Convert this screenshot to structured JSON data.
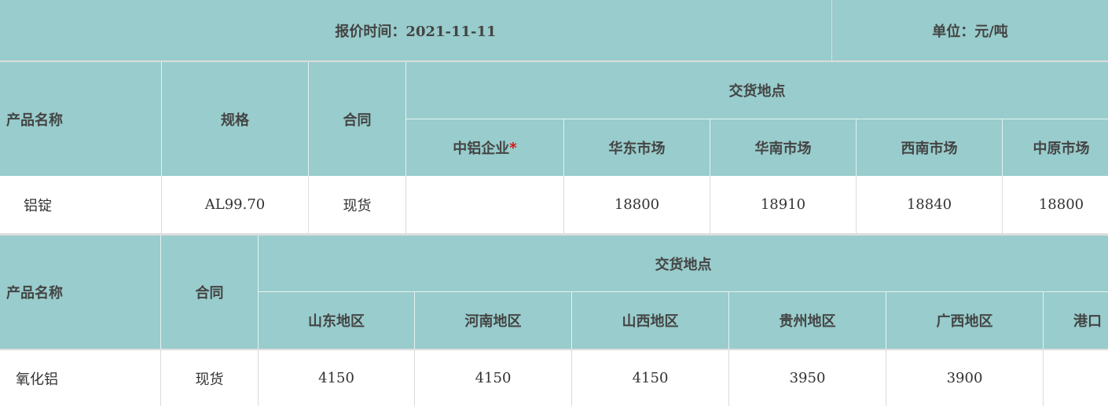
{
  "header": {
    "quote_time": "报价时间：2021-11-11",
    "unit": "单位：元/吨"
  },
  "colors": {
    "header_bg": "#99cccc",
    "required_star": "#e00000"
  },
  "table1": {
    "headers": {
      "product": "产品名称",
      "spec": "规格",
      "contract": "合同",
      "delivery": "交货地点"
    },
    "locations": [
      {
        "label": "中铝企业",
        "star": "*"
      },
      {
        "label": "华东市场"
      },
      {
        "label": "华南市场"
      },
      {
        "label": "西南市场"
      },
      {
        "label": "中原市场"
      }
    ],
    "row": {
      "product": "铝锭",
      "spec": "AL99.70",
      "contract": "现货",
      "values": [
        "",
        "18800",
        "18910",
        "18840",
        "18800"
      ]
    }
  },
  "table2": {
    "headers": {
      "product": "产品名称",
      "contract": "合同",
      "delivery": "交货地点"
    },
    "locations": [
      "山东地区",
      "河南地区",
      "山西地区",
      "贵州地区",
      "广西地区",
      "港口"
    ],
    "row": {
      "product": "氧化铝",
      "contract": "现货",
      "values": [
        "4150",
        "4150",
        "4150",
        "3950",
        "3900",
        ""
      ]
    }
  }
}
